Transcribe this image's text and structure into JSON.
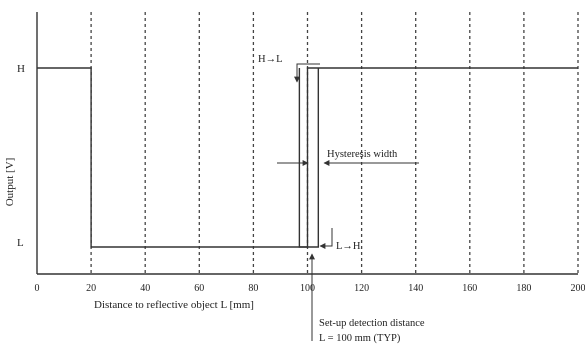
{
  "chart_data": {
    "type": "line",
    "xlabel": "Distance to reflective object  L [mm]",
    "ylabel": "Output  [V]",
    "x_ticks": [
      "0",
      "20",
      "40",
      "60",
      "80",
      "100",
      "120",
      "140",
      "160",
      "180",
      "200"
    ],
    "xlim": [
      0,
      200
    ],
    "y_levels": [
      {
        "label": "H",
        "value": 1
      },
      {
        "label": "L",
        "value": 0
      }
    ],
    "grid_x": "dashed vertical at each x tick",
    "series": [
      {
        "values_description": "output level vs distance, falling branch",
        "points": [
          [
            0,
            1
          ],
          [
            20,
            1
          ],
          [
            20,
            0
          ],
          [
            100,
            0
          ],
          [
            100,
            1
          ],
          [
            200,
            1
          ]
        ]
      },
      {
        "values_description": "output level vs distance, rising branch",
        "points": [
          [
            97,
            1
          ],
          [
            97,
            0
          ],
          [
            104,
            0
          ],
          [
            104,
            1
          ]
        ]
      }
    ],
    "annotations": {
      "h_to_l": "H→L",
      "l_to_h": "L→H",
      "hysteresis": "Hysteresis width",
      "setup_line1": "Set-up detection distance",
      "setup_line2": "L = 100 mm (TYP)"
    },
    "setup_distance": 100,
    "colors": {
      "line": "#333333",
      "grid": "#444444",
      "text": "#222222"
    }
  }
}
